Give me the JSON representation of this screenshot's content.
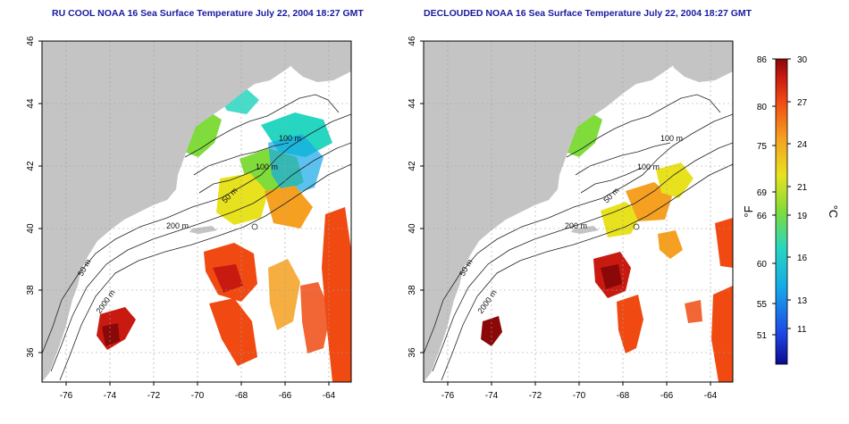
{
  "maps": [
    {
      "title": "RU COOL NOAA 16 Sea Surface Temperature July 22, 2004 18:27 GMT",
      "contour_labels": [
        "100 m",
        "100 m",
        "50 m",
        "200 m",
        "50 m",
        "2000 m"
      ]
    },
    {
      "title": "DECLOUDED NOAA 16 Sea Surface Temperature July 22, 2004 18:27 GMT",
      "contour_labels": [
        "100 m",
        "100 m",
        "50 m",
        "200 m",
        "50 m",
        "2000 m"
      ]
    }
  ],
  "axes": {
    "x_ticks": [
      "-76",
      "-74",
      "-72",
      "-70",
      "-68",
      "-66",
      "-64"
    ],
    "y_ticks": [
      "46",
      "44",
      "42",
      "40",
      "38",
      "36"
    ]
  },
  "colorbar": {
    "unit_f": "°F",
    "unit_c": "°C",
    "f_ticks": [
      "86",
      "80",
      "75",
      "69",
      "66",
      "60",
      "55",
      "51"
    ],
    "c_ticks": [
      "30",
      "27",
      "24",
      "21",
      "19",
      "16",
      "13",
      "11"
    ],
    "colors": [
      "#0b0b8c",
      "#1e46e6",
      "#16a8e8",
      "#27d6c0",
      "#7fdc3a",
      "#e8e21e",
      "#f5a020",
      "#f04a12",
      "#c81a10",
      "#8a0808"
    ]
  },
  "colors": {
    "land": "#c4c4c4",
    "title": "#1a1aa0",
    "grid": "#a0a0a0"
  }
}
